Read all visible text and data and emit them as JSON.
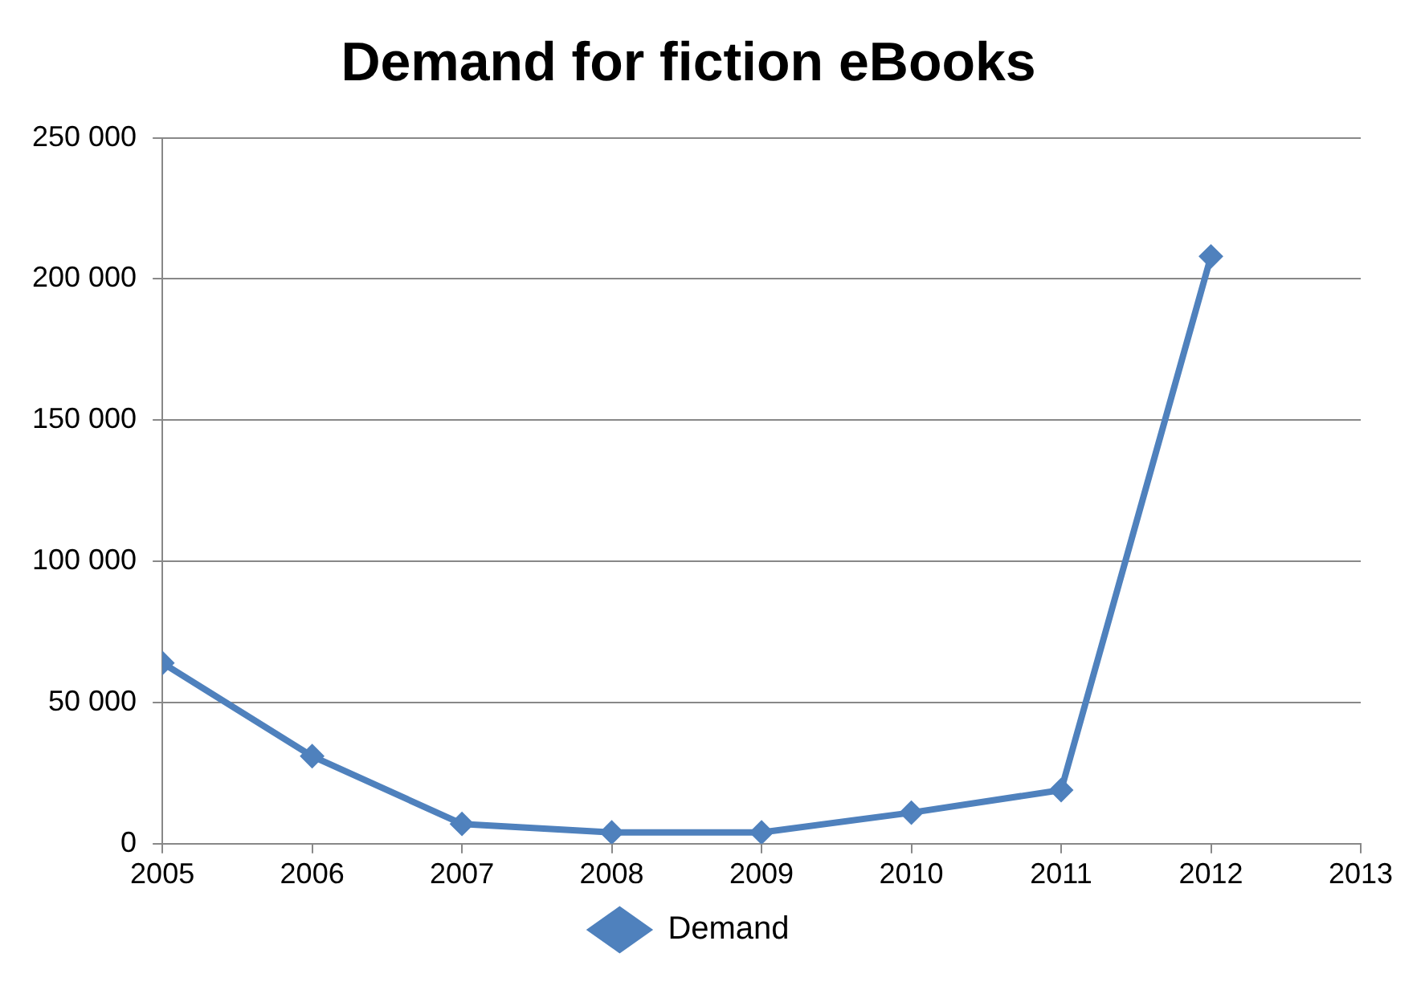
{
  "chart_data": {
    "type": "line",
    "title": "Demand for fiction eBooks",
    "x": [
      2005,
      2006,
      2007,
      2008,
      2009,
      2010,
      2011,
      2012
    ],
    "series": [
      {
        "name": "Demand",
        "color": "#4f81bd",
        "values": [
          64000,
          31000,
          7000,
          4000,
          4000,
          11000,
          19000,
          208000
        ]
      }
    ],
    "xlim": [
      2005,
      2013
    ],
    "xticks": [
      2005,
      2006,
      2007,
      2008,
      2009,
      2010,
      2011,
      2012,
      2013
    ],
    "ylim": [
      0,
      250000
    ],
    "yticks": [
      0,
      {
        "value": 50000,
        "label": "50 000"
      },
      {
        "value": 100000,
        "label": "100 000"
      },
      {
        "value": 150000,
        "label": "150 000"
      },
      {
        "value": 200000,
        "label": "200 000"
      },
      {
        "value": 250000,
        "label": "250 000"
      }
    ],
    "grid": "y",
    "legend": "bottom",
    "marker": "diamond",
    "line_style": "solid"
  }
}
